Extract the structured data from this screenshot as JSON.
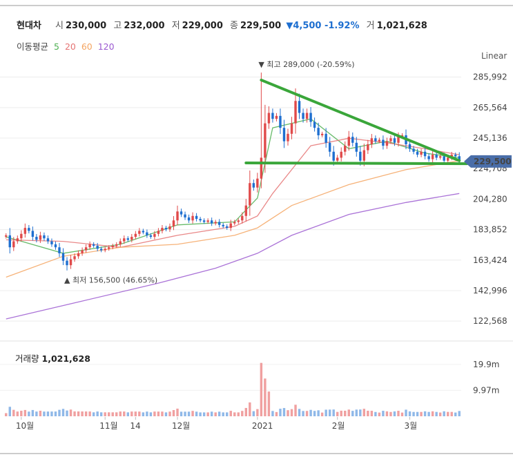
{
  "header": {
    "name": "현대차",
    "open_label": "시",
    "open": "230,000",
    "high_label": "고",
    "high": "232,000",
    "low_label": "저",
    "low": "229,000",
    "close_label": "종",
    "close": "229,500",
    "change": "▼4,500 -1.92%",
    "volume_label": "거",
    "volume": "1,021,628"
  },
  "ma_legend": {
    "label": "이동평균",
    "items": [
      {
        "label": "5",
        "color": "#4caf50"
      },
      {
        "label": "20",
        "color": "#e57373"
      },
      {
        "label": "60",
        "color": "#f4a460"
      },
      {
        "label": "120",
        "color": "#9b59d0"
      }
    ]
  },
  "scale_label": "Linear",
  "volume_panel": {
    "label": "거래량",
    "value": "1,021,628"
  },
  "annotations": {
    "high": "▼ 최고 289,000 (-20.59%)",
    "low": "▲ 최저 156,500 (46.65%)"
  },
  "colors": {
    "up": "#e04a4a",
    "down": "#1e6fd0",
    "trend": "#3aa63a",
    "current": "#4a6ea9"
  },
  "chart_data": {
    "type": "candlestick",
    "title": "현대차",
    "yticks": [
      122568,
      142996,
      163424,
      183852,
      204280,
      224708,
      245136,
      265564,
      285992
    ],
    "ytick_labels": [
      "122,568",
      "142,996",
      "163,424",
      "183,852",
      "204,280",
      "224,708",
      "245,136",
      "265,564",
      "285,992"
    ],
    "ylim": [
      112000,
      296000
    ],
    "xticks": [
      {
        "label": "10월",
        "i": 4
      },
      {
        "label": "11월",
        "i": 26
      },
      {
        "label": "14",
        "i": 34
      },
      {
        "label": "12월",
        "i": 45
      },
      {
        "label": "2021",
        "i": 66
      },
      {
        "label": "2월",
        "i": 87
      },
      {
        "label": "3월",
        "i": 106
      }
    ],
    "n_bars": 120,
    "closes": [
      180000,
      172000,
      176000,
      178000,
      181000,
      185000,
      183000,
      179000,
      177000,
      180000,
      178000,
      176000,
      174000,
      172000,
      168000,
      163000,
      160000,
      164000,
      166000,
      168000,
      170000,
      172000,
      174000,
      173000,
      171000,
      170000,
      171000,
      172000,
      173000,
      174000,
      176000,
      178000,
      177000,
      179000,
      181000,
      183000,
      182000,
      180000,
      179000,
      181000,
      183000,
      185000,
      184000,
      186000,
      190000,
      196000,
      194000,
      192000,
      190000,
      193000,
      191000,
      190000,
      189000,
      190000,
      188000,
      189000,
      187000,
      186000,
      185000,
      188000,
      189000,
      190000,
      193000,
      200000,
      215000,
      212000,
      218000,
      232000,
      255000,
      262000,
      258000,
      260000,
      252000,
      243000,
      248000,
      255000,
      270000,
      262000,
      258000,
      262000,
      256000,
      252000,
      247000,
      248000,
      242000,
      236000,
      230000,
      232000,
      236000,
      240000,
      246000,
      242000,
      236000,
      230000,
      237000,
      241000,
      245000,
      243000,
      244000,
      240000,
      243000,
      245000,
      242000,
      246000,
      247000,
      241000,
      238000,
      236000,
      234000,
      236000,
      233000,
      231000,
      234000,
      232000,
      233000,
      230000,
      232000,
      234000,
      233000,
      229500
    ],
    "high_point": {
      "value": 289000,
      "i": 67,
      "pct": "-20.59%"
    },
    "low_point": {
      "value": 156500,
      "i": 16,
      "pct": "46.65%"
    },
    "ma_series": [
      {
        "name": "5",
        "points": [
          [
            0,
            179000
          ],
          [
            15,
            168000
          ],
          [
            30,
            174000
          ],
          [
            45,
            187000
          ],
          [
            60,
            189000
          ],
          [
            66,
            205000
          ],
          [
            70,
            252000
          ],
          [
            80,
            258000
          ],
          [
            90,
            238000
          ],
          [
            100,
            243000
          ],
          [
            110,
            235000
          ],
          [
            119,
            232000
          ]
        ]
      },
      {
        "name": "20",
        "points": [
          [
            0,
            177000
          ],
          [
            15,
            176000
          ],
          [
            30,
            172000
          ],
          [
            45,
            180000
          ],
          [
            60,
            186000
          ],
          [
            66,
            193000
          ],
          [
            70,
            208000
          ],
          [
            80,
            240000
          ],
          [
            90,
            245000
          ],
          [
            100,
            242000
          ],
          [
            110,
            238000
          ],
          [
            119,
            234000
          ]
        ]
      },
      {
        "name": "60",
        "points": [
          [
            0,
            152000
          ],
          [
            15,
            166000
          ],
          [
            30,
            172000
          ],
          [
            45,
            174000
          ],
          [
            60,
            180000
          ],
          [
            66,
            185000
          ],
          [
            75,
            200000
          ],
          [
            90,
            214000
          ],
          [
            105,
            224000
          ],
          [
            119,
            230000
          ]
        ]
      },
      {
        "name": "120",
        "points": [
          [
            0,
            124000
          ],
          [
            20,
            136000
          ],
          [
            40,
            148000
          ],
          [
            55,
            158000
          ],
          [
            66,
            168000
          ],
          [
            75,
            180000
          ],
          [
            90,
            194000
          ],
          [
            105,
            202000
          ],
          [
            119,
            208000
          ]
        ]
      }
    ],
    "trendlines": [
      {
        "points": [
          [
            67,
            284000
          ],
          [
            119,
            230000
          ]
        ]
      },
      {
        "points": [
          [
            63,
            228500
          ],
          [
            121,
            228000
          ]
        ]
      }
    ],
    "volume_yticks": [
      "9.97m",
      "19.9m"
    ],
    "volume_max": 22000000,
    "current_label": "229,500"
  }
}
